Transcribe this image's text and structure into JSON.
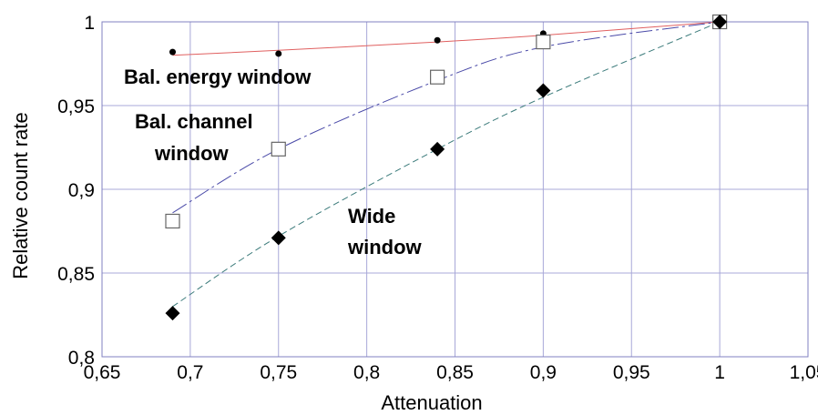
{
  "chart_data": {
    "type": "scatter",
    "title": "",
    "xlabel": "Attenuation",
    "ylabel": "Relative count rate",
    "xlim": [
      0.65,
      1.05
    ],
    "ylim": [
      0.8,
      1.0
    ],
    "grid": true,
    "x_ticks": [
      "0,65",
      "0,7",
      "0,75",
      "0,8",
      "0,85",
      "0,9",
      "0,95",
      "1",
      "1,05"
    ],
    "y_ticks": [
      "0,8",
      "0,85",
      "0,9",
      "0,95",
      "1"
    ],
    "series": [
      {
        "marker": "circle",
        "fit_style": "solid",
        "color": "#e06060",
        "x": [
          0.69,
          0.75,
          0.84,
          0.9,
          1.0
        ],
        "y": [
          0.982,
          0.981,
          0.989,
          0.993,
          1.0
        ],
        "fit_y": [
          0.98,
          0.983,
          0.988,
          0.992,
          1.0
        ]
      },
      {
        "marker": "open-square",
        "fit_style": "dash-dot",
        "color": "#4a4aa8",
        "x": [
          0.69,
          0.75,
          0.84,
          0.9,
          1.0
        ],
        "y": [
          0.881,
          0.924,
          0.967,
          0.988,
          1.0
        ],
        "fit_y": [
          0.886,
          0.924,
          0.965,
          0.985,
          1.0
        ]
      },
      {
        "marker": "filled-diamond",
        "fit_style": "dashed",
        "color": "#3a7a7a",
        "x": [
          0.69,
          0.75,
          0.84,
          0.9,
          1.0
        ],
        "y": [
          0.826,
          0.871,
          0.924,
          0.959,
          1.0
        ],
        "fit_y": [
          0.83,
          0.872,
          0.924,
          0.955,
          1.0
        ]
      }
    ],
    "annotations": [
      {
        "lines": [
          "Bal. energy window"
        ]
      },
      {
        "lines": [
          "Bal. channel",
          "window"
        ]
      },
      {
        "lines": [
          "Wide",
          "window"
        ]
      }
    ]
  }
}
